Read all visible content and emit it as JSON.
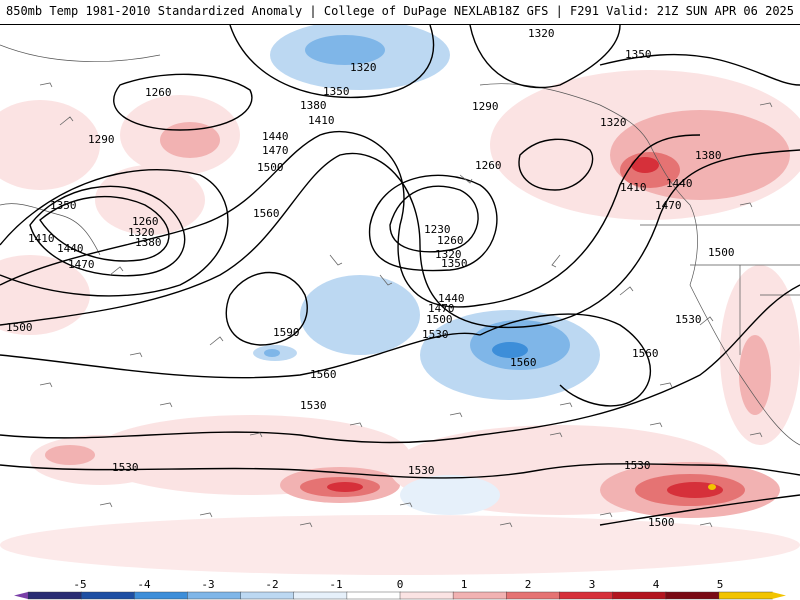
{
  "header": {
    "left": "850mb Temp 1981-2010 Standardized Anomaly | College of DuPage NEXLAB",
    "right": "18Z GFS | F291 Valid: 21Z SUN APR 06 2025"
  },
  "contours": [
    {
      "value": "1320",
      "label": "1320"
    },
    {
      "value": "1350",
      "label": "1350"
    },
    {
      "value": "1260",
      "label": "1260"
    },
    {
      "value": "1290",
      "label": "1290"
    },
    {
      "value": "1380",
      "label": "1380"
    },
    {
      "value": "1410",
      "label": "1410"
    },
    {
      "value": "1440",
      "label": "1440"
    },
    {
      "value": "1470",
      "label": "1470"
    },
    {
      "value": "1500",
      "label": "1500"
    },
    {
      "value": "1560",
      "label": "1560"
    },
    {
      "value": "1590",
      "label": "1590"
    },
    {
      "value": "1230",
      "label": "1230"
    },
    {
      "value": "1530",
      "label": "1530"
    }
  ],
  "colorbar": {
    "ticks": [
      "-5",
      "-4",
      "-3",
      "-2",
      "-1",
      "0",
      "1",
      "2",
      "3",
      "4",
      "5"
    ],
    "colors": [
      "#2a2d73",
      "#1e4fa3",
      "#3d8ed9",
      "#7fb6e8",
      "#bcd8f2",
      "#e6f0fa",
      "#ffffff",
      "#fbe3e3",
      "#f2b2b2",
      "#e57373",
      "#d6303a",
      "#b3151f",
      "#7a0a14",
      "#f2c400"
    ]
  }
}
